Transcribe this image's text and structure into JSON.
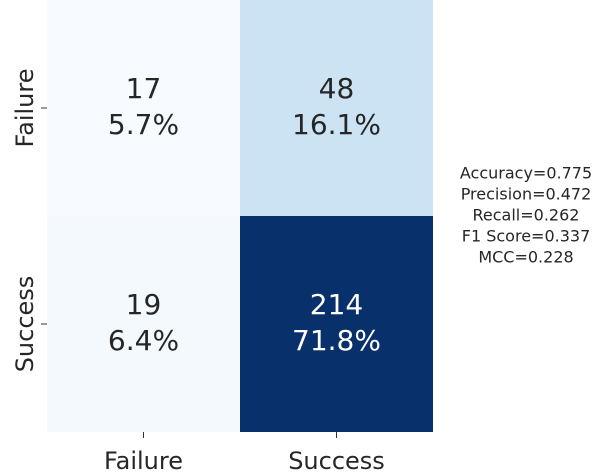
{
  "chart_data": {
    "type": "heatmap",
    "x_categories": [
      "Failure",
      "Success"
    ],
    "y_categories": [
      "Failure",
      "Success"
    ],
    "values": [
      [
        17,
        48
      ],
      [
        19,
        214
      ]
    ],
    "percent_labels": [
      [
        "5.7%",
        "16.1%"
      ],
      [
        "6.4%",
        "71.8%"
      ]
    ],
    "colormap": [
      "#f7fbff",
      "#6baed6",
      "#08306b"
    ],
    "annotations": [
      "Accuracy=0.775",
      "Precision=0.472",
      "Recall=0.262",
      "F1 Score=0.337",
      "MCC=0.228"
    ]
  }
}
